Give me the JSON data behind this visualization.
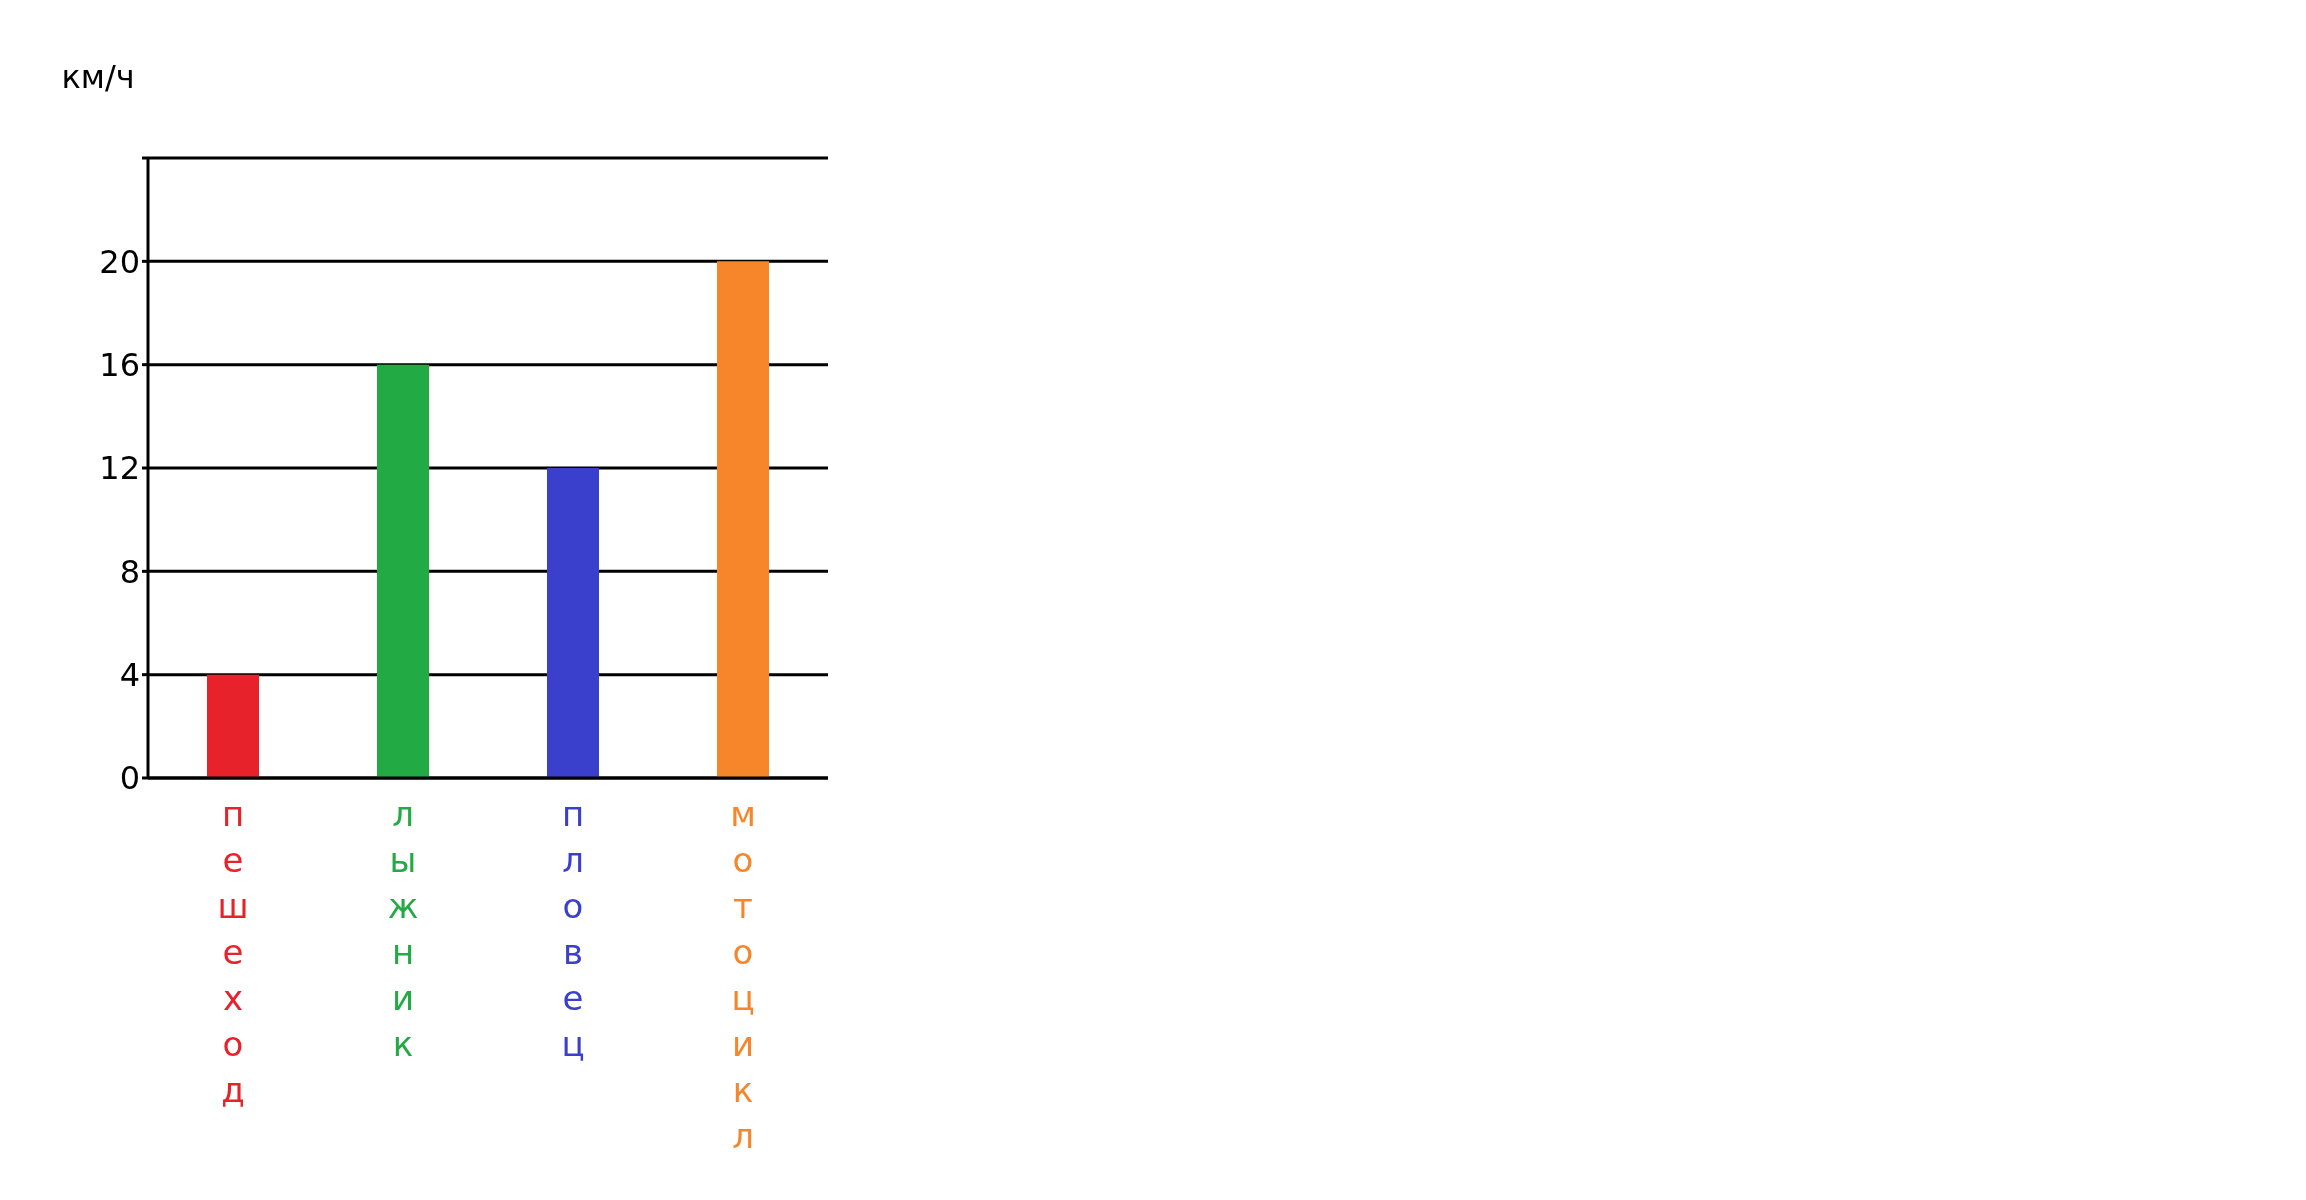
{
  "chart_data": {
    "type": "bar",
    "ylabel": "км/ч",
    "categories": [
      "пешеход",
      "лыжник",
      "пловец",
      "мотоцикл"
    ],
    "values": [
      4,
      16,
      12,
      20
    ],
    "colors": [
      "#e8222a",
      "#22aa44",
      "#3a3fcc",
      "#f7862a"
    ],
    "ylim": [
      0,
      24
    ],
    "yticks": [
      0,
      4,
      8,
      12,
      16,
      20,
      {
        "value": 24,
        "label": null
      }
    ],
    "grid": "y"
  }
}
